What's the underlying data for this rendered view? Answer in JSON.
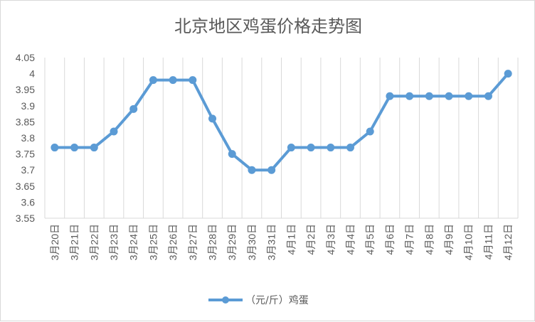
{
  "chart_data": {
    "type": "line",
    "title": "北京地区鸡蛋价格走势图",
    "xlabel": "",
    "ylabel": "",
    "categories": [
      "3月20日",
      "3月21日",
      "3月22日",
      "3月23日",
      "3月24日",
      "3月25日",
      "3月26日",
      "3月27日",
      "3月28日",
      "3月29日",
      "3月30日",
      "3月31日",
      "4月1日",
      "4月2日",
      "4月3日",
      "4月4日",
      "4月5日",
      "4月6日",
      "4月7日",
      "4月8日",
      "4月9日",
      "4月10日",
      "4月11日",
      "4月12日"
    ],
    "series": [
      {
        "name": "（元/斤）鸡蛋",
        "color": "#5b9bd5",
        "values": [
          3.77,
          3.77,
          3.77,
          3.82,
          3.89,
          3.98,
          3.98,
          3.98,
          3.86,
          3.75,
          3.7,
          3.7,
          3.77,
          3.77,
          3.77,
          3.77,
          3.82,
          3.93,
          3.93,
          3.93,
          3.93,
          3.93,
          3.93,
          4.0
        ]
      }
    ],
    "ylim": [
      3.55,
      4.05
    ],
    "yticks": [
      "3.55",
      "3.6",
      "3.65",
      "3.7",
      "3.75",
      "3.8",
      "3.85",
      "3.9",
      "3.95",
      "4",
      "4.05"
    ],
    "grid": "vertical",
    "legend": "bottom"
  }
}
